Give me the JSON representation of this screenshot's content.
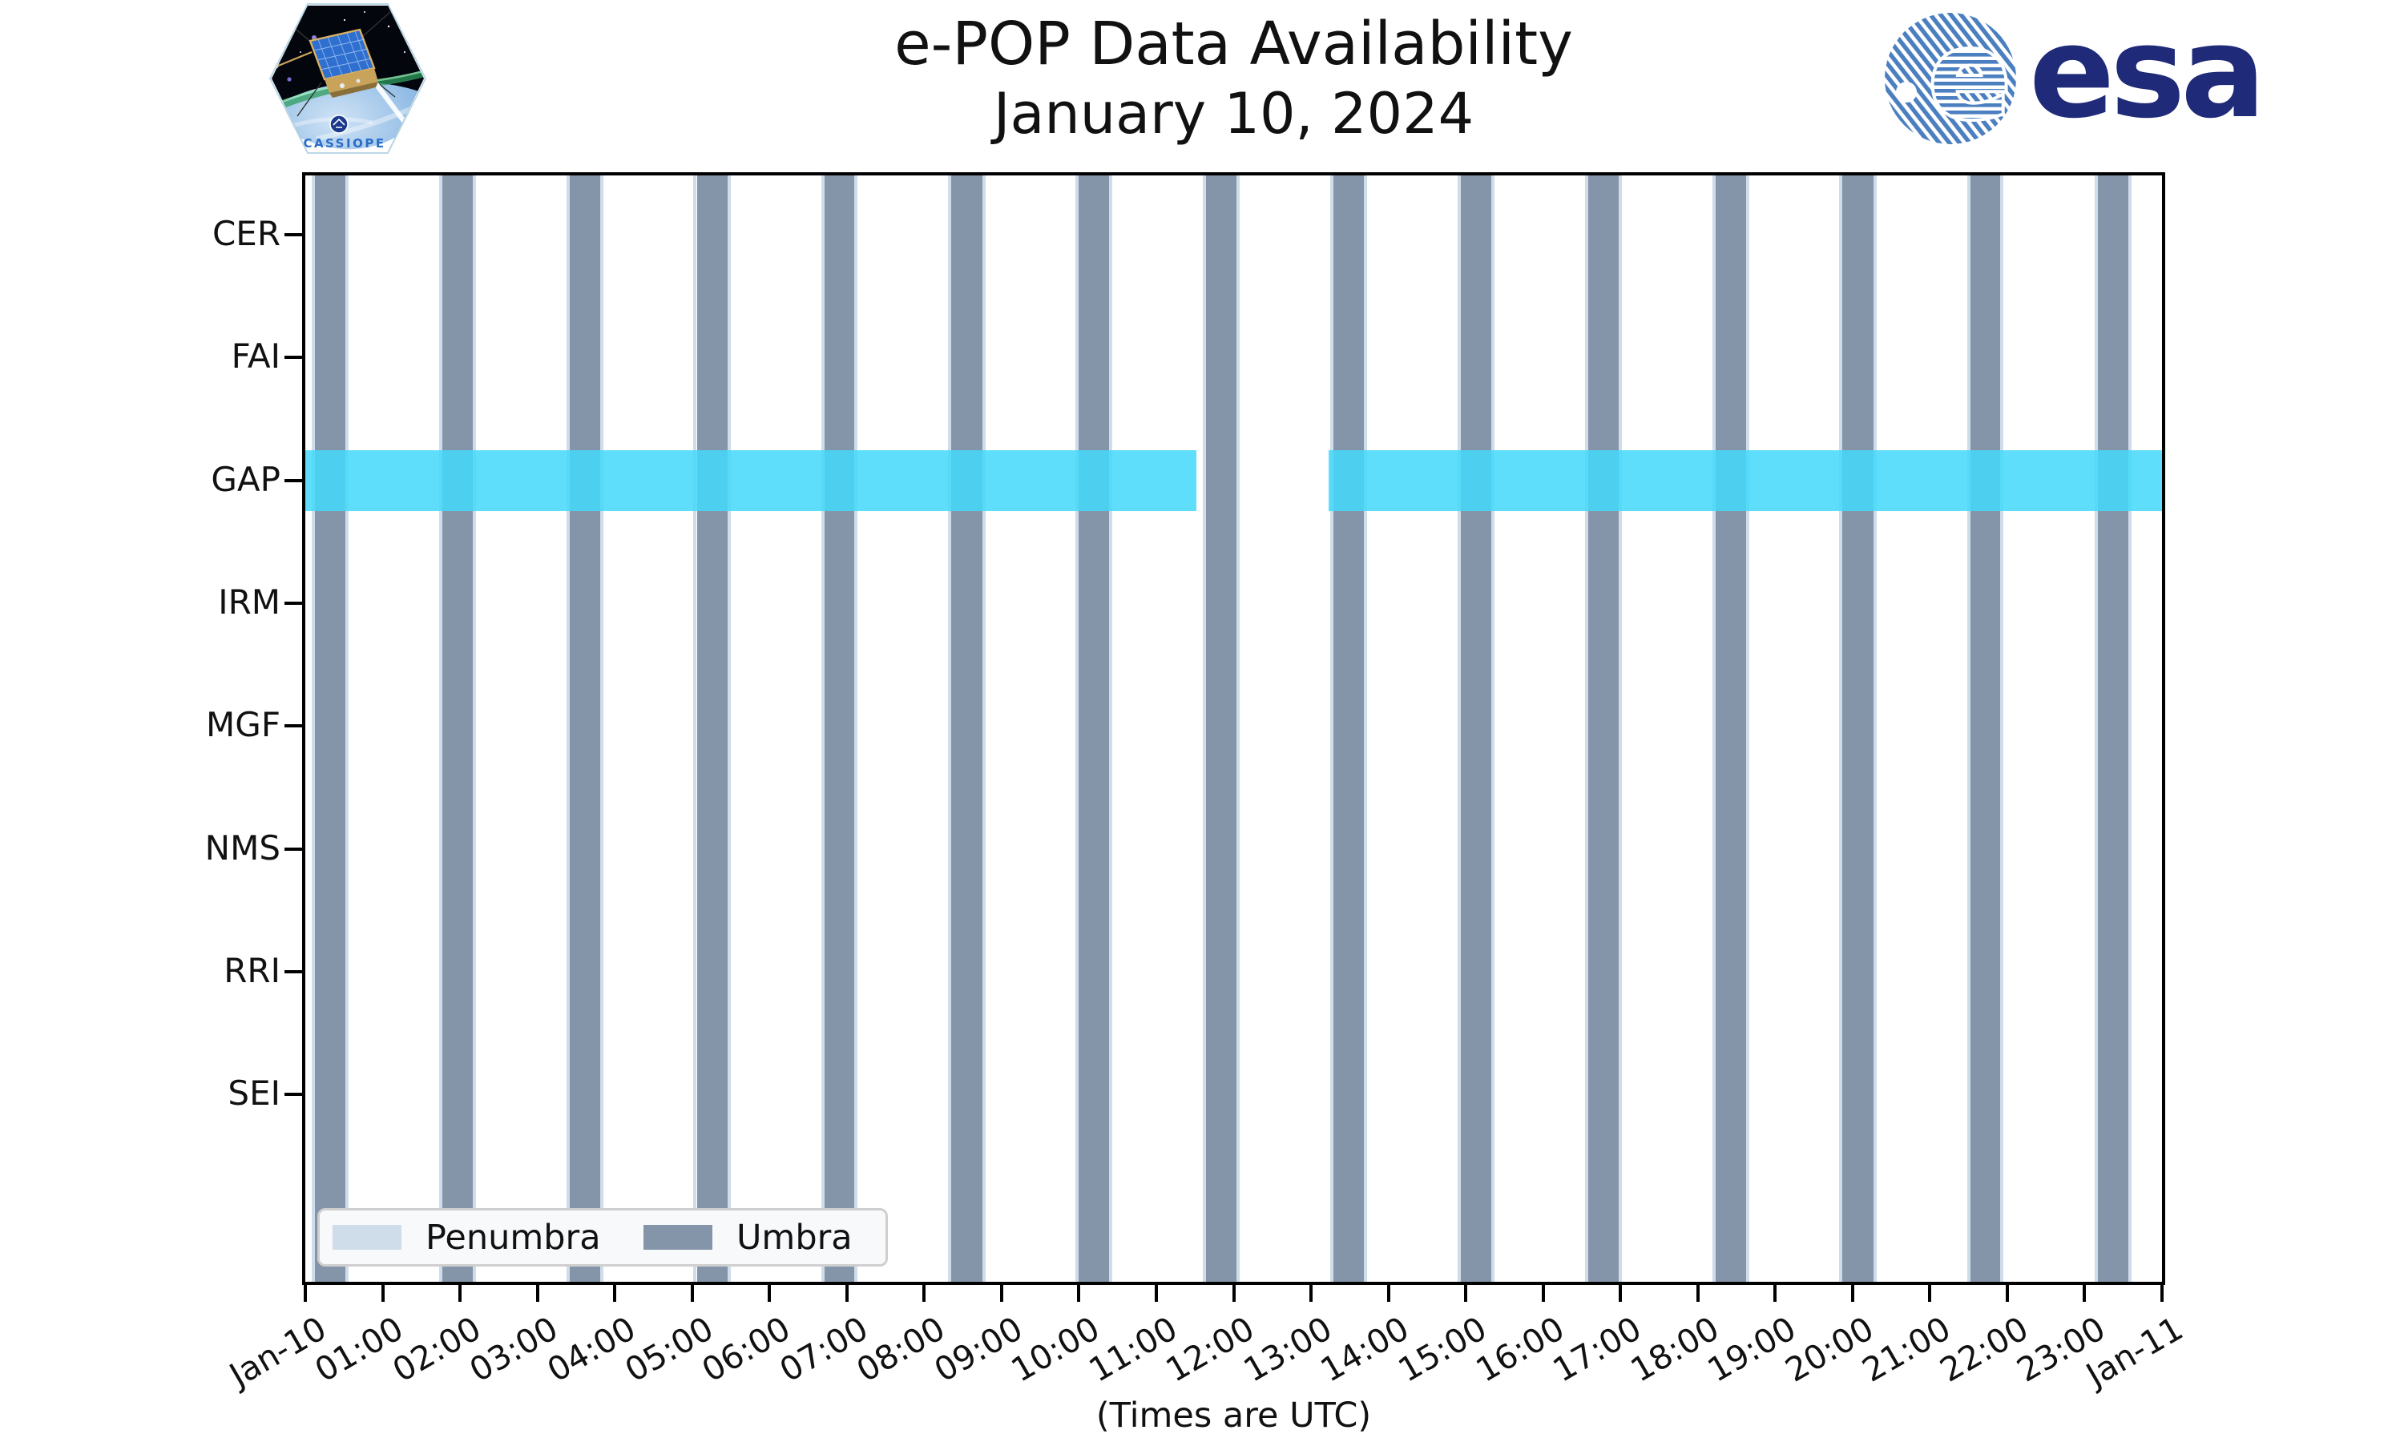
{
  "header": {
    "title_line1": "e-POP Data Availability",
    "title_line2": "January 10, 2024",
    "cassiope_patch_label": "CASSIOPE",
    "esa_logo_text": "esa"
  },
  "chart_data": {
    "type": "timeline",
    "title": "e-POP Data Availability",
    "subtitle": "January 10, 2024",
    "xlabel": "(Times are UTC)",
    "x_range_hours": [
      0,
      24
    ],
    "x_tick_labels": [
      "Jan-10",
      "01:00",
      "02:00",
      "03:00",
      "04:00",
      "05:00",
      "06:00",
      "07:00",
      "08:00",
      "09:00",
      "10:00",
      "11:00",
      "12:00",
      "13:00",
      "14:00",
      "15:00",
      "16:00",
      "17:00",
      "18:00",
      "19:00",
      "20:00",
      "21:00",
      "22:00",
      "23:00",
      "Jan-11"
    ],
    "instruments": [
      "CER",
      "FAI",
      "GAP",
      "IRM",
      "MGF",
      "NMS",
      "RRI",
      "SEI"
    ],
    "umbra_intervals": [
      {
        "start": "00:07",
        "end": "00:31",
        "start_h": 0.12,
        "end_h": 0.52
      },
      {
        "start": "01:46",
        "end": "02:10",
        "start_h": 1.77,
        "end_h": 2.16
      },
      {
        "start": "03:25",
        "end": "03:49",
        "start_h": 3.42,
        "end_h": 3.81
      },
      {
        "start": "05:04",
        "end": "05:27",
        "start_h": 5.06,
        "end_h": 5.46
      },
      {
        "start": "06:43",
        "end": "07:06",
        "start_h": 6.71,
        "end_h": 7.1
      },
      {
        "start": "08:21",
        "end": "08:45",
        "start_h": 8.35,
        "end_h": 8.75
      },
      {
        "start": "10:00",
        "end": "10:24",
        "start_h": 10.0,
        "end_h": 10.39
      },
      {
        "start": "11:39",
        "end": "12:02",
        "start_h": 11.64,
        "end_h": 12.04
      },
      {
        "start": "13:17",
        "end": "13:41",
        "start_h": 13.29,
        "end_h": 13.68
      },
      {
        "start": "14:56",
        "end": "15:20",
        "start_h": 14.94,
        "end_h": 15.33
      },
      {
        "start": "16:35",
        "end": "16:59",
        "start_h": 16.58,
        "end_h": 16.98
      },
      {
        "start": "18:14",
        "end": "18:37",
        "start_h": 18.23,
        "end_h": 18.62
      },
      {
        "start": "19:52",
        "end": "20:16",
        "start_h": 19.87,
        "end_h": 20.27
      },
      {
        "start": "21:31",
        "end": "21:55",
        "start_h": 21.52,
        "end_h": 21.91
      },
      {
        "start": "23:10",
        "end": "23:34",
        "start_h": 23.17,
        "end_h": 23.56
      }
    ],
    "penumbra_minutes_each_side": 2.5,
    "data_availability": [
      {
        "instrument": "GAP",
        "segments": [
          {
            "start": "00:00",
            "end": "11:31",
            "start_h": 0.0,
            "end_h": 11.52
          },
          {
            "start": "13:14",
            "end": "24:00",
            "start_h": 13.23,
            "end_h": 24.0
          }
        ]
      }
    ],
    "legend": [
      {
        "label": "Penumbra",
        "color": "#cfdce9"
      },
      {
        "label": "Umbra",
        "color": "#8595a9"
      }
    ],
    "colors": {
      "umbra": "#8595a9",
      "penumbra": "#cfdce9",
      "availability": "rgba(68,217,250,0.86)",
      "frame": "#000000",
      "esa_navy": "#1f2a78",
      "esa_stripe_blue": "#4b7fc0"
    }
  }
}
